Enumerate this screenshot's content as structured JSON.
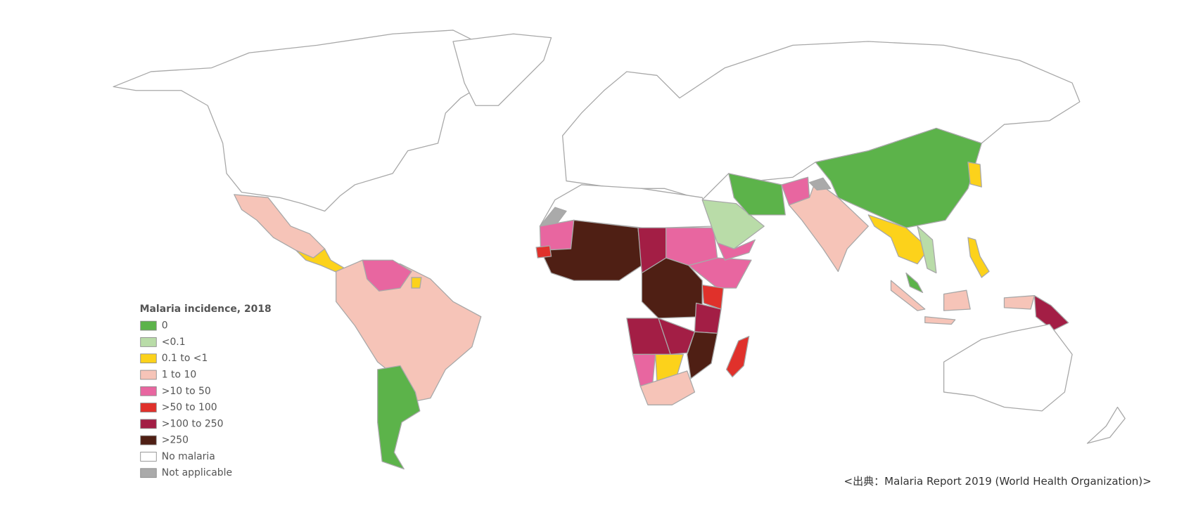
{
  "legend": {
    "title": "Malaria incidence, 2018",
    "items": [
      {
        "label": "0",
        "color": "#5cb34a"
      },
      {
        "label": "<0.1",
        "color": "#b9dca8"
      },
      {
        "label": "0.1 to <1",
        "color": "#fcd21b"
      },
      {
        "label": "1 to 10",
        "color": "#f6c4b8"
      },
      {
        "label": ">10 to 50",
        "color": "#e866a0"
      },
      {
        "label": ">50 to 100",
        "color": "#e0312b"
      },
      {
        "label": ">100 to 250",
        "color": "#a31e45"
      },
      {
        "label": ">250",
        "color": "#4f1f14"
      },
      {
        "label": "No malaria",
        "color": "#ffffff"
      },
      {
        "label": "Not applicable",
        "color": "#aaaaaa"
      }
    ]
  },
  "source": "<出典：Malaria Report 2019 (World Health Organization)>"
}
